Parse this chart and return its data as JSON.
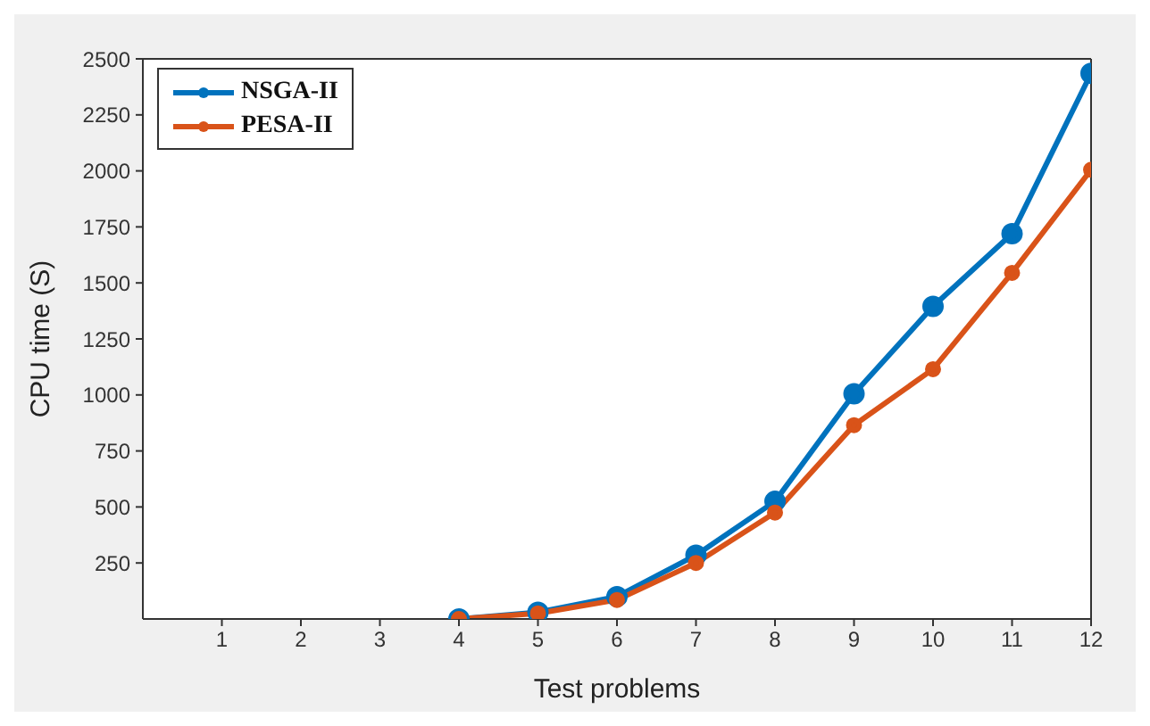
{
  "chart_data": {
    "type": "line",
    "xlabel": "Test problems",
    "ylabel": "CPU time (S)",
    "x": [
      4,
      5,
      6,
      7,
      8,
      9,
      10,
      11,
      12
    ],
    "series": [
      {
        "name": "NSGA-II",
        "color": "#0072bd",
        "values": [
          0,
          30,
          100,
          285,
          525,
          1005,
          1395,
          1720,
          2435
        ]
      },
      {
        "name": "PESA-II",
        "color": "#d95319",
        "values": [
          0,
          25,
          85,
          250,
          475,
          865,
          1115,
          1545,
          2005
        ]
      }
    ],
    "xlim": [
      0,
      12
    ],
    "xticks": [
      1,
      2,
      3,
      4,
      5,
      6,
      7,
      8,
      9,
      10,
      11,
      12
    ],
    "ylim": [
      0,
      2500
    ],
    "yticks": [
      250,
      500,
      750,
      1000,
      1250,
      1500,
      1750,
      2000,
      2250,
      2500
    ],
    "grid": false,
    "legend": "top left",
    "marker": "circle",
    "line_style": "solid"
  }
}
